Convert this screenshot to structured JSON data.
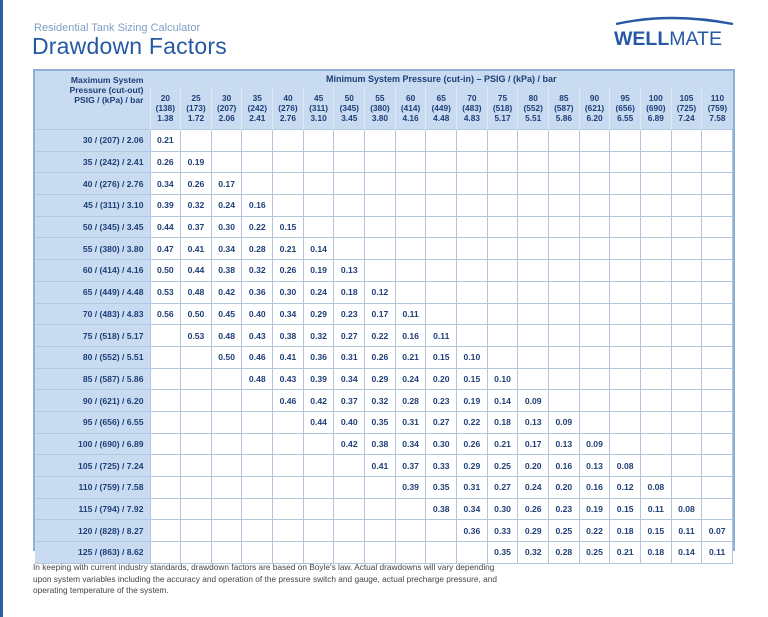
{
  "header": {
    "subtitle": "Residential Tank Sizing Calculator",
    "title": "Drawdown Factors",
    "logo_text_bold": "WELL",
    "logo_text_light": "MATE"
  },
  "table": {
    "row_header": [
      "Maximum System",
      "Pressure (cut-out)",
      "PSIG / (kPa) / bar"
    ],
    "column_group": "Minimum System Pressure (cut-in) – PSIG / (kPa) / bar",
    "columns": [
      {
        "psig": "20",
        "kpa": "(138)",
        "bar": "1.38"
      },
      {
        "psig": "25",
        "kpa": "(173)",
        "bar": "1.72"
      },
      {
        "psig": "30",
        "kpa": "(207)",
        "bar": "2.06"
      },
      {
        "psig": "35",
        "kpa": "(242)",
        "bar": "2.41"
      },
      {
        "psig": "40",
        "kpa": "(276)",
        "bar": "2.76"
      },
      {
        "psig": "45",
        "kpa": "(311)",
        "bar": "3.10"
      },
      {
        "psig": "50",
        "kpa": "(345)",
        "bar": "3.45"
      },
      {
        "psig": "55",
        "kpa": "(380)",
        "bar": "3.80"
      },
      {
        "psig": "60",
        "kpa": "(414)",
        "bar": "4.16"
      },
      {
        "psig": "65",
        "kpa": "(449)",
        "bar": "4.48"
      },
      {
        "psig": "70",
        "kpa": "(483)",
        "bar": "4.83"
      },
      {
        "psig": "75",
        "kpa": "(518)",
        "bar": "5.17"
      },
      {
        "psig": "80",
        "kpa": "(552)",
        "bar": "5.51"
      },
      {
        "psig": "85",
        "kpa": "(587)",
        "bar": "5.86"
      },
      {
        "psig": "90",
        "kpa": "(621)",
        "bar": "6.20"
      },
      {
        "psig": "95",
        "kpa": "(656)",
        "bar": "6.55"
      },
      {
        "psig": "100",
        "kpa": "(690)",
        "bar": "6.89"
      },
      {
        "psig": "105",
        "kpa": "(725)",
        "bar": "7.24"
      },
      {
        "psig": "110",
        "kpa": "(759)",
        "bar": "7.58"
      }
    ],
    "rows": [
      {
        "label": "30 / (207) / 2.06",
        "values": [
          "0.21",
          "",
          "",
          "",
          "",
          "",
          "",
          "",
          "",
          "",
          "",
          "",
          "",
          "",
          "",
          "",
          "",
          "",
          ""
        ]
      },
      {
        "label": "35 / (242) / 2.41",
        "values": [
          "0.26",
          "0.19",
          "",
          "",
          "",
          "",
          "",
          "",
          "",
          "",
          "",
          "",
          "",
          "",
          "",
          "",
          "",
          "",
          ""
        ]
      },
      {
        "label": "40 / (276) / 2.76",
        "values": [
          "0.34",
          "0.26",
          "0.17",
          "",
          "",
          "",
          "",
          "",
          "",
          "",
          "",
          "",
          "",
          "",
          "",
          "",
          "",
          "",
          ""
        ]
      },
      {
        "label": "45 / (311) / 3.10",
        "values": [
          "0.39",
          "0.32",
          "0.24",
          "0.16",
          "",
          "",
          "",
          "",
          "",
          "",
          "",
          "",
          "",
          "",
          "",
          "",
          "",
          "",
          ""
        ]
      },
      {
        "label": "50 / (345) / 3.45",
        "values": [
          "0.44",
          "0.37",
          "0.30",
          "0.22",
          "0.15",
          "",
          "",
          "",
          "",
          "",
          "",
          "",
          "",
          "",
          "",
          "",
          "",
          "",
          ""
        ]
      },
      {
        "label": "55 / (380) / 3.80",
        "values": [
          "0.47",
          "0.41",
          "0.34",
          "0.28",
          "0.21",
          "0.14",
          "",
          "",
          "",
          "",
          "",
          "",
          "",
          "",
          "",
          "",
          "",
          "",
          ""
        ]
      },
      {
        "label": "60 / (414) / 4.16",
        "values": [
          "0.50",
          "0.44",
          "0.38",
          "0.32",
          "0.26",
          "0.19",
          "0.13",
          "",
          "",
          "",
          "",
          "",
          "",
          "",
          "",
          "",
          "",
          "",
          ""
        ]
      },
      {
        "label": "65 / (449) / 4.48",
        "values": [
          "0.53",
          "0.48",
          "0.42",
          "0.36",
          "0.30",
          "0.24",
          "0.18",
          "0.12",
          "",
          "",
          "",
          "",
          "",
          "",
          "",
          "",
          "",
          "",
          ""
        ]
      },
      {
        "label": "70 / (483) / 4.83",
        "values": [
          "0.56",
          "0.50",
          "0.45",
          "0.40",
          "0.34",
          "0.29",
          "0.23",
          "0.17",
          "0.11",
          "",
          "",
          "",
          "",
          "",
          "",
          "",
          "",
          "",
          ""
        ]
      },
      {
        "label": "75 / (518) / 5.17",
        "values": [
          "",
          "0.53",
          "0.48",
          "0.43",
          "0.38",
          "0.32",
          "0.27",
          "0.22",
          "0.16",
          "0.11",
          "",
          "",
          "",
          "",
          "",
          "",
          "",
          "",
          ""
        ]
      },
      {
        "label": "80 / (552) / 5.51",
        "values": [
          "",
          "",
          "0.50",
          "0.46",
          "0.41",
          "0.36",
          "0.31",
          "0.26",
          "0.21",
          "0.15",
          "0.10",
          "",
          "",
          "",
          "",
          "",
          "",
          "",
          ""
        ]
      },
      {
        "label": "85 / (587) / 5.86",
        "values": [
          "",
          "",
          "",
          "0.48",
          "0.43",
          "0.39",
          "0.34",
          "0.29",
          "0.24",
          "0.20",
          "0.15",
          "0.10",
          "",
          "",
          "",
          "",
          "",
          "",
          ""
        ]
      },
      {
        "label": "90 / (621) / 6.20",
        "values": [
          "",
          "",
          "",
          "",
          "0.46",
          "0.42",
          "0.37",
          "0.32",
          "0.28",
          "0.23",
          "0.19",
          "0.14",
          "0.09",
          "",
          "",
          "",
          "",
          "",
          ""
        ]
      },
      {
        "label": "95 / (656) / 6.55",
        "values": [
          "",
          "",
          "",
          "",
          "",
          "0.44",
          "0.40",
          "0.35",
          "0.31",
          "0.27",
          "0.22",
          "0.18",
          "0.13",
          "0.09",
          "",
          "",
          "",
          "",
          ""
        ]
      },
      {
        "label": "100 / (690) / 6.89",
        "values": [
          "",
          "",
          "",
          "",
          "",
          "",
          "0.42",
          "0.38",
          "0.34",
          "0.30",
          "0.26",
          "0.21",
          "0.17",
          "0.13",
          "0.09",
          "",
          "",
          "",
          ""
        ]
      },
      {
        "label": "105 / (725) / 7.24",
        "values": [
          "",
          "",
          "",
          "",
          "",
          "",
          "",
          "0.41",
          "0.37",
          "0.33",
          "0.29",
          "0.25",
          "0.20",
          "0.16",
          "0.13",
          "0.08",
          "",
          "",
          ""
        ]
      },
      {
        "label": "110 / (759) / 7.58",
        "values": [
          "",
          "",
          "",
          "",
          "",
          "",
          "",
          "",
          "0.39",
          "0.35",
          "0.31",
          "0.27",
          "0.24",
          "0.20",
          "0.16",
          "0.12",
          "0.08",
          "",
          ""
        ]
      },
      {
        "label": "115 / (794) / 7.92",
        "values": [
          "",
          "",
          "",
          "",
          "",
          "",
          "",
          "",
          "",
          "0.38",
          "0.34",
          "0.30",
          "0.26",
          "0.23",
          "0.19",
          "0.15",
          "0.11",
          "0.08",
          ""
        ]
      },
      {
        "label": "120 / (828) / 8.27",
        "values": [
          "",
          "",
          "",
          "",
          "",
          "",
          "",
          "",
          "",
          "",
          "0.36",
          "0.33",
          "0.29",
          "0.25",
          "0.22",
          "0.18",
          "0.15",
          "0.11",
          "0.07"
        ]
      },
      {
        "label": "125 / (863) / 8.62",
        "values": [
          "",
          "",
          "",
          "",
          "",
          "",
          "",
          "",
          "",
          "",
          "",
          "0.35",
          "0.32",
          "0.28",
          "0.25",
          "0.21",
          "0.18",
          "0.14",
          "0.11"
        ]
      }
    ]
  },
  "footnote": "In keeping with current industry standards, drawdown factors are based on Boyle's law. Actual drawdowns will vary depending upon system variables including the accuracy and operation of the pressure switch and gauge, actual precharge pressure, and operating temperature of the system.",
  "colors": {
    "brand_blue": "#2659a3",
    "header_fill": "#c8dbf1",
    "table_border": "#8db0db",
    "cell_text": "#1e3f77"
  }
}
